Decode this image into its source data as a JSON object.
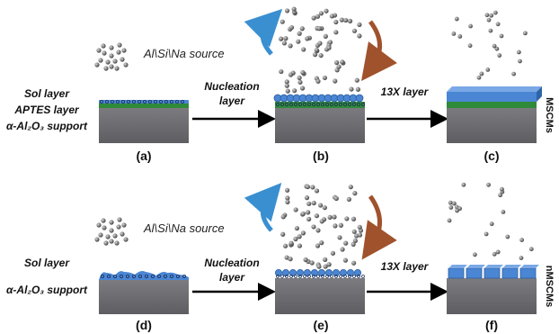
{
  "top_row": {
    "source_label": "Al\\Si\\Na source",
    "sol_label": "Sol layer",
    "aptes_label": "APTES layer",
    "support_label": "α-Al₂O₃ support",
    "nucleation_label_1": "Nucleation",
    "nucleation_label_2": "layer",
    "x13_label": "13X layer",
    "side_label": "MSCMs",
    "panels": [
      "(a)",
      "(b)",
      "(c)"
    ]
  },
  "bottom_row": {
    "source_label": "Al\\Si\\Na source",
    "sol_label": "Sol layer",
    "support_label": "α-Al₂O₃ support",
    "nucleation_label_1": "Nucleation",
    "nucleation_label_2": "layer",
    "x13_label": "13X layer",
    "side_label": "nMSCMs",
    "panels": [
      "(d)",
      "(e)",
      "(f)"
    ]
  },
  "colors": {
    "support": "#6e6e72",
    "aptes": "#2f8a3a",
    "zeolite": "#4a86d4",
    "particle": "#6b6b6b",
    "arrow": "#000000",
    "recycle_left": "#3a8fd0",
    "recycle_right": "#a0522d"
  }
}
